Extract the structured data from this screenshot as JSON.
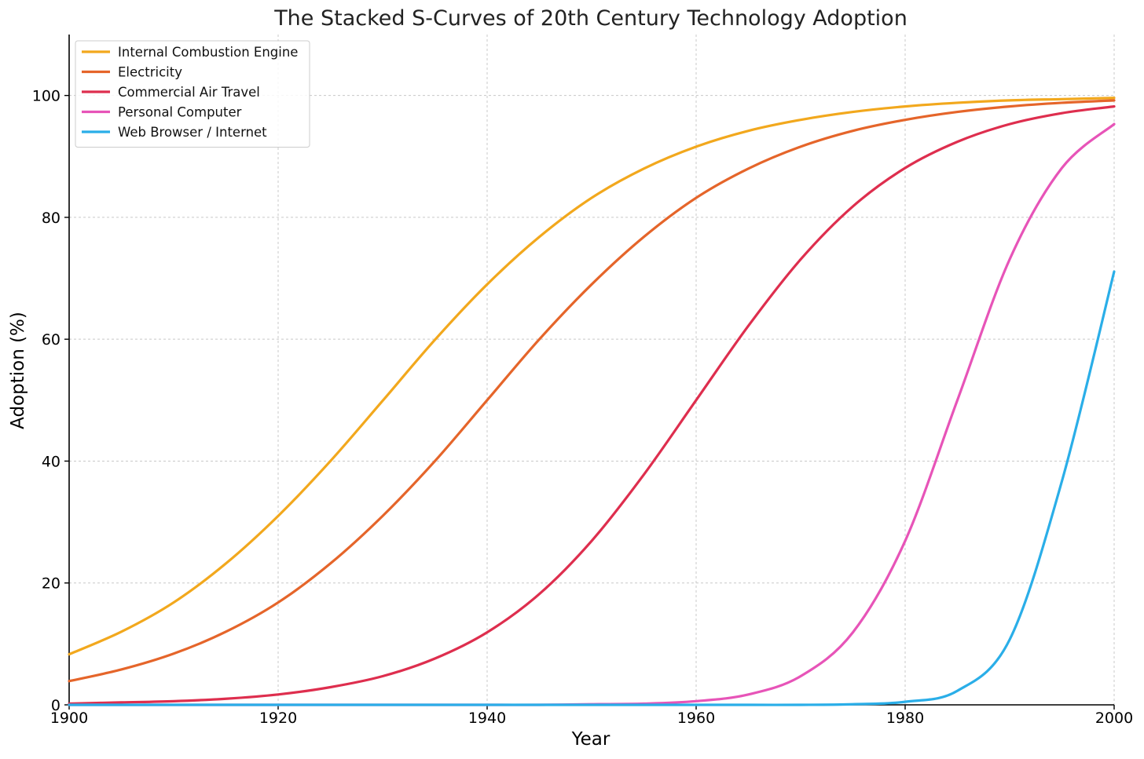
{
  "chart_data": {
    "type": "line",
    "title": "The Stacked S-Curves of 20th Century Technology Adoption",
    "xlabel": "Year",
    "ylabel": "Adoption (%)",
    "xlim": [
      1900,
      2000
    ],
    "ylim": [
      0,
      110
    ],
    "xticks": [
      1900,
      1920,
      1940,
      1960,
      1980,
      2000
    ],
    "yticks": [
      0,
      20,
      40,
      60,
      80,
      100
    ],
    "grid": true,
    "legend_position": "top-left",
    "x": [
      1900,
      1905,
      1910,
      1915,
      1920,
      1925,
      1930,
      1935,
      1940,
      1945,
      1950,
      1955,
      1960,
      1965,
      1970,
      1975,
      1980,
      1985,
      1990,
      1995,
      2000
    ],
    "series": [
      {
        "name": "Internal Combustion Engine",
        "color": "#F2A81D",
        "values": [
          8.3,
          12.0,
          16.8,
          23.2,
          31.0,
          40.0,
          49.9,
          59.9,
          69.0,
          76.8,
          83.2,
          88.0,
          91.6,
          94.2,
          96.0,
          97.3,
          98.2,
          98.8,
          99.2,
          99.4,
          99.6
        ]
      },
      {
        "name": "Electricity",
        "color": "#E5652A",
        "values": [
          3.9,
          5.8,
          8.4,
          12.0,
          16.8,
          23.2,
          31.0,
          40.0,
          50.0,
          60.0,
          69.0,
          76.8,
          83.2,
          88.0,
          91.6,
          94.2,
          96.0,
          97.3,
          98.2,
          98.8,
          99.2
        ]
      },
      {
        "name": "Commercial Air Travel",
        "color": "#DE2E4E",
        "values": [
          0.2,
          0.4,
          0.6,
          1.0,
          1.7,
          2.9,
          4.7,
          7.6,
          11.9,
          18.2,
          26.9,
          37.8,
          50.0,
          62.2,
          73.1,
          81.8,
          88.1,
          92.4,
          95.3,
          97.1,
          98.2
        ]
      },
      {
        "name": "Personal Computer",
        "color": "#E754B8",
        "values": [
          0.0,
          0.0,
          0.0,
          0.0,
          0.0,
          0.0,
          0.0,
          0.0,
          0.0,
          0.0,
          0.1,
          0.2,
          0.6,
          1.7,
          4.7,
          11.9,
          26.9,
          50.0,
          73.1,
          88.1,
          95.3
        ]
      },
      {
        "name": "Web Browser / Internet",
        "color": "#2AAEE8",
        "values": [
          0.0,
          0.0,
          0.0,
          0.0,
          0.0,
          0.0,
          0.0,
          0.0,
          0.0,
          0.0,
          0.0,
          0.0,
          0.0,
          0.0,
          0.0,
          0.1,
          0.5,
          2.3,
          10.7,
          36.7,
          71.1
        ]
      }
    ]
  }
}
